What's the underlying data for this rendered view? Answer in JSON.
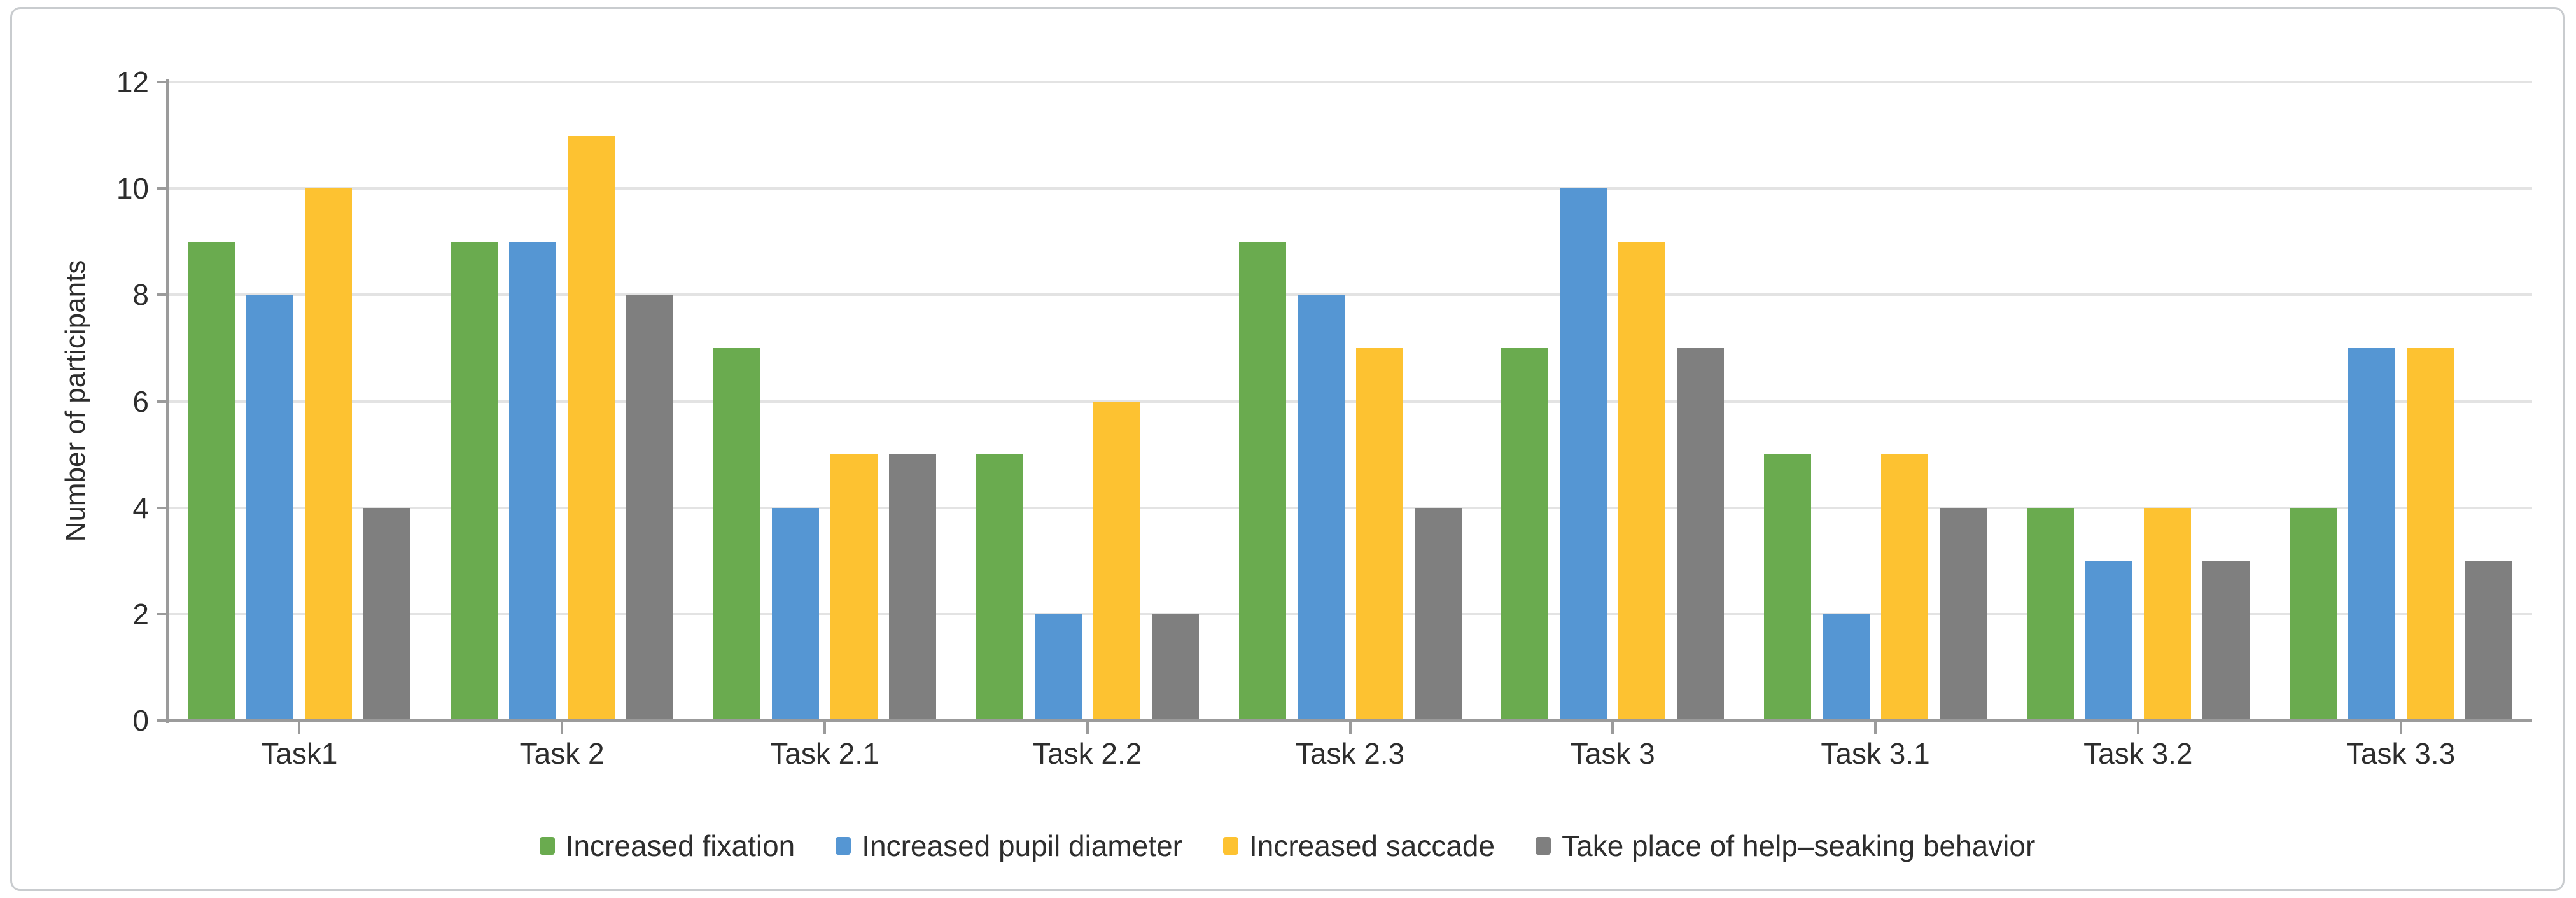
{
  "chart_data": {
    "type": "bar",
    "title": "",
    "xlabel": "",
    "ylabel": "Number of participants",
    "ylim": [
      0,
      12
    ],
    "yticks": [
      0,
      2,
      4,
      6,
      8,
      10,
      12
    ],
    "grid": "horizontal",
    "legend_position": "bottom-center",
    "categories": [
      "Task1",
      "Task 2",
      "Task 2.1",
      "Task 2.2",
      "Task 2.3",
      "Task 3",
      "Task 3.1",
      "Task 3.2",
      "Task 3.3"
    ],
    "series": [
      {
        "name": "Increased fixation",
        "color": "#6aab4f",
        "values": [
          9,
          9,
          7,
          5,
          9,
          7,
          5,
          4,
          4
        ]
      },
      {
        "name": "Increased pupil diameter",
        "color": "#5596d3",
        "values": [
          8,
          9,
          4,
          2,
          8,
          10,
          2,
          3,
          7
        ]
      },
      {
        "name": "Increased saccade",
        "color": "#fdc231",
        "values": [
          10,
          11,
          5,
          6,
          7,
          9,
          5,
          4,
          7
        ]
      },
      {
        "name": "Take place of help–seaking behavior",
        "color": "#7f7f7f",
        "values": [
          4,
          8,
          5,
          2,
          4,
          7,
          4,
          3,
          3
        ]
      }
    ],
    "colors": {
      "grid": "#e3e3e3",
      "axis": "#9b9b9b",
      "text": "#2d2d2d",
      "frame_border": "#c9cccf",
      "background": "#ffffff"
    }
  }
}
